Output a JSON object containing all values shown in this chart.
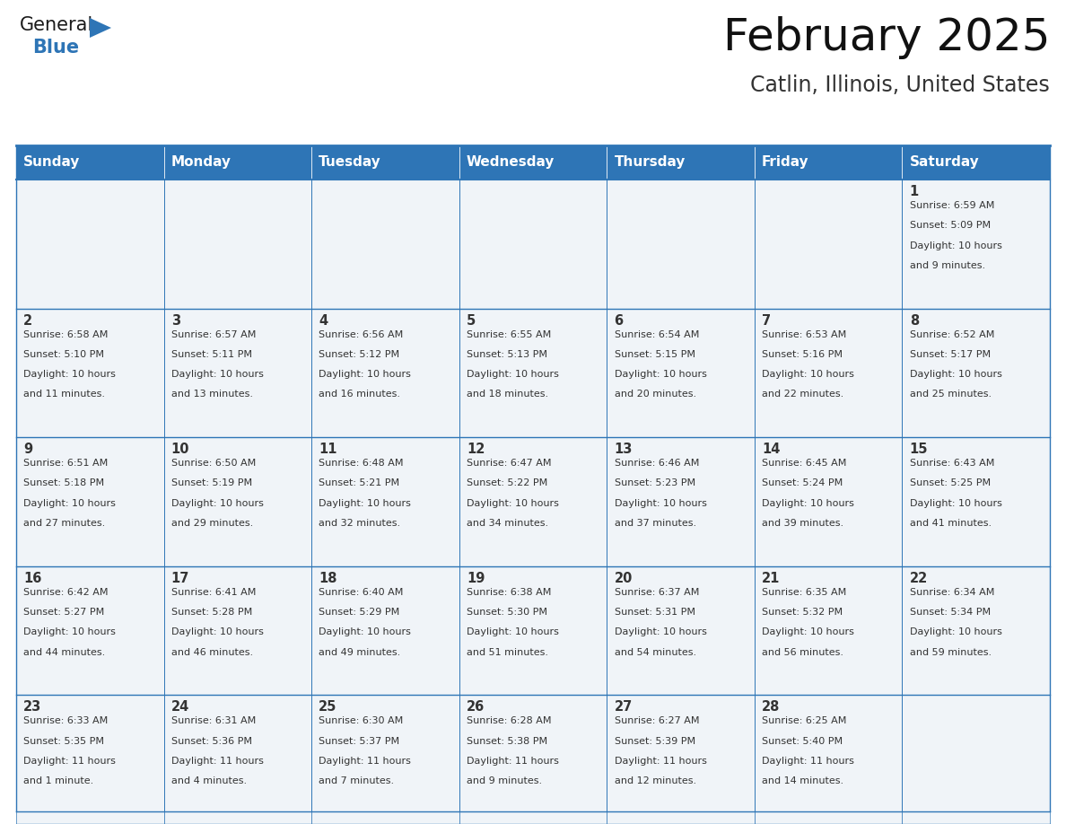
{
  "title": "February 2025",
  "subtitle": "Catlin, Illinois, United States",
  "header_bg": "#2E75B6",
  "header_text_color": "#FFFFFF",
  "cell_bg": "#F0F4F8",
  "border_color": "#2E75B6",
  "text_color": "#333333",
  "days_of_week": [
    "Sunday",
    "Monday",
    "Tuesday",
    "Wednesday",
    "Thursday",
    "Friday",
    "Saturday"
  ],
  "calendar_data": [
    [
      null,
      null,
      null,
      null,
      null,
      null,
      {
        "day": "1",
        "sunrise": "6:59 AM",
        "sunset": "5:09 PM",
        "daylight": "Daylight: 10 hours",
        "daylight2": "and 9 minutes."
      }
    ],
    [
      {
        "day": "2",
        "sunrise": "6:58 AM",
        "sunset": "5:10 PM",
        "daylight": "Daylight: 10 hours",
        "daylight2": "and 11 minutes."
      },
      {
        "day": "3",
        "sunrise": "6:57 AM",
        "sunset": "5:11 PM",
        "daylight": "Daylight: 10 hours",
        "daylight2": "and 13 minutes."
      },
      {
        "day": "4",
        "sunrise": "6:56 AM",
        "sunset": "5:12 PM",
        "daylight": "Daylight: 10 hours",
        "daylight2": "and 16 minutes."
      },
      {
        "day": "5",
        "sunrise": "6:55 AM",
        "sunset": "5:13 PM",
        "daylight": "Daylight: 10 hours",
        "daylight2": "and 18 minutes."
      },
      {
        "day": "6",
        "sunrise": "6:54 AM",
        "sunset": "5:15 PM",
        "daylight": "Daylight: 10 hours",
        "daylight2": "and 20 minutes."
      },
      {
        "day": "7",
        "sunrise": "6:53 AM",
        "sunset": "5:16 PM",
        "daylight": "Daylight: 10 hours",
        "daylight2": "and 22 minutes."
      },
      {
        "day": "8",
        "sunrise": "6:52 AM",
        "sunset": "5:17 PM",
        "daylight": "Daylight: 10 hours",
        "daylight2": "and 25 minutes."
      }
    ],
    [
      {
        "day": "9",
        "sunrise": "6:51 AM",
        "sunset": "5:18 PM",
        "daylight": "Daylight: 10 hours",
        "daylight2": "and 27 minutes."
      },
      {
        "day": "10",
        "sunrise": "6:50 AM",
        "sunset": "5:19 PM",
        "daylight": "Daylight: 10 hours",
        "daylight2": "and 29 minutes."
      },
      {
        "day": "11",
        "sunrise": "6:48 AM",
        "sunset": "5:21 PM",
        "daylight": "Daylight: 10 hours",
        "daylight2": "and 32 minutes."
      },
      {
        "day": "12",
        "sunrise": "6:47 AM",
        "sunset": "5:22 PM",
        "daylight": "Daylight: 10 hours",
        "daylight2": "and 34 minutes."
      },
      {
        "day": "13",
        "sunrise": "6:46 AM",
        "sunset": "5:23 PM",
        "daylight": "Daylight: 10 hours",
        "daylight2": "and 37 minutes."
      },
      {
        "day": "14",
        "sunrise": "6:45 AM",
        "sunset": "5:24 PM",
        "daylight": "Daylight: 10 hours",
        "daylight2": "and 39 minutes."
      },
      {
        "day": "15",
        "sunrise": "6:43 AM",
        "sunset": "5:25 PM",
        "daylight": "Daylight: 10 hours",
        "daylight2": "and 41 minutes."
      }
    ],
    [
      {
        "day": "16",
        "sunrise": "6:42 AM",
        "sunset": "5:27 PM",
        "daylight": "Daylight: 10 hours",
        "daylight2": "and 44 minutes."
      },
      {
        "day": "17",
        "sunrise": "6:41 AM",
        "sunset": "5:28 PM",
        "daylight": "Daylight: 10 hours",
        "daylight2": "and 46 minutes."
      },
      {
        "day": "18",
        "sunrise": "6:40 AM",
        "sunset": "5:29 PM",
        "daylight": "Daylight: 10 hours",
        "daylight2": "and 49 minutes."
      },
      {
        "day": "19",
        "sunrise": "6:38 AM",
        "sunset": "5:30 PM",
        "daylight": "Daylight: 10 hours",
        "daylight2": "and 51 minutes."
      },
      {
        "day": "20",
        "sunrise": "6:37 AM",
        "sunset": "5:31 PM",
        "daylight": "Daylight: 10 hours",
        "daylight2": "and 54 minutes."
      },
      {
        "day": "21",
        "sunrise": "6:35 AM",
        "sunset": "5:32 PM",
        "daylight": "Daylight: 10 hours",
        "daylight2": "and 56 minutes."
      },
      {
        "day": "22",
        "sunrise": "6:34 AM",
        "sunset": "5:34 PM",
        "daylight": "Daylight: 10 hours",
        "daylight2": "and 59 minutes."
      }
    ],
    [
      {
        "day": "23",
        "sunrise": "6:33 AM",
        "sunset": "5:35 PM",
        "daylight": "Daylight: 11 hours",
        "daylight2": "and 1 minute."
      },
      {
        "day": "24",
        "sunrise": "6:31 AM",
        "sunset": "5:36 PM",
        "daylight": "Daylight: 11 hours",
        "daylight2": "and 4 minutes."
      },
      {
        "day": "25",
        "sunrise": "6:30 AM",
        "sunset": "5:37 PM",
        "daylight": "Daylight: 11 hours",
        "daylight2": "and 7 minutes."
      },
      {
        "day": "26",
        "sunrise": "6:28 AM",
        "sunset": "5:38 PM",
        "daylight": "Daylight: 11 hours",
        "daylight2": "and 9 minutes."
      },
      {
        "day": "27",
        "sunrise": "6:27 AM",
        "sunset": "5:39 PM",
        "daylight": "Daylight: 11 hours",
        "daylight2": "and 12 minutes."
      },
      {
        "day": "28",
        "sunrise": "6:25 AM",
        "sunset": "5:40 PM",
        "daylight": "Daylight: 11 hours",
        "daylight2": "and 14 minutes."
      },
      null
    ]
  ]
}
